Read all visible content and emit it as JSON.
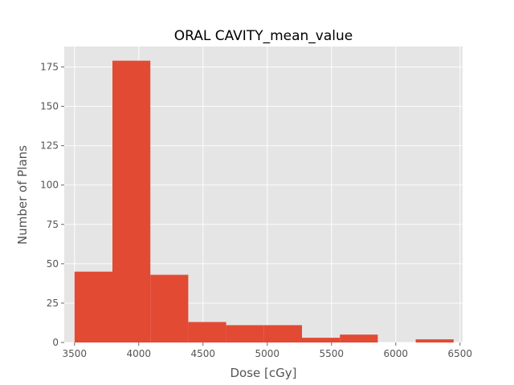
{
  "chart_data": {
    "type": "bar",
    "title": "ORAL CAVITY_mean_value",
    "xlabel": "Dose [cGy]",
    "ylabel": "Number of Plans",
    "xlim": [
      3420,
      6520
    ],
    "ylim": [
      0,
      188
    ],
    "xticks": [
      3500,
      4000,
      4500,
      5000,
      5500,
      6000,
      6500
    ],
    "yticks": [
      0,
      25,
      50,
      75,
      100,
      125,
      150,
      175
    ],
    "grid": true,
    "bins": [
      {
        "start": 3500,
        "end": 3795,
        "count": 45
      },
      {
        "start": 3795,
        "end": 4090,
        "count": 179
      },
      {
        "start": 4090,
        "end": 4385,
        "count": 43
      },
      {
        "start": 4385,
        "end": 4680,
        "count": 13
      },
      {
        "start": 4680,
        "end": 4975,
        "count": 11
      },
      {
        "start": 4975,
        "end": 5270,
        "count": 11
      },
      {
        "start": 5270,
        "end": 5565,
        "count": 3
      },
      {
        "start": 5565,
        "end": 5860,
        "count": 5
      },
      {
        "start": 5860,
        "end": 6155,
        "count": 0
      },
      {
        "start": 6155,
        "end": 6450,
        "count": 2
      }
    ],
    "colors": {
      "bar": "#E24A33",
      "plot_background": "#E5E5E5",
      "grid": "#FFFFFF",
      "text": "#555555"
    }
  }
}
